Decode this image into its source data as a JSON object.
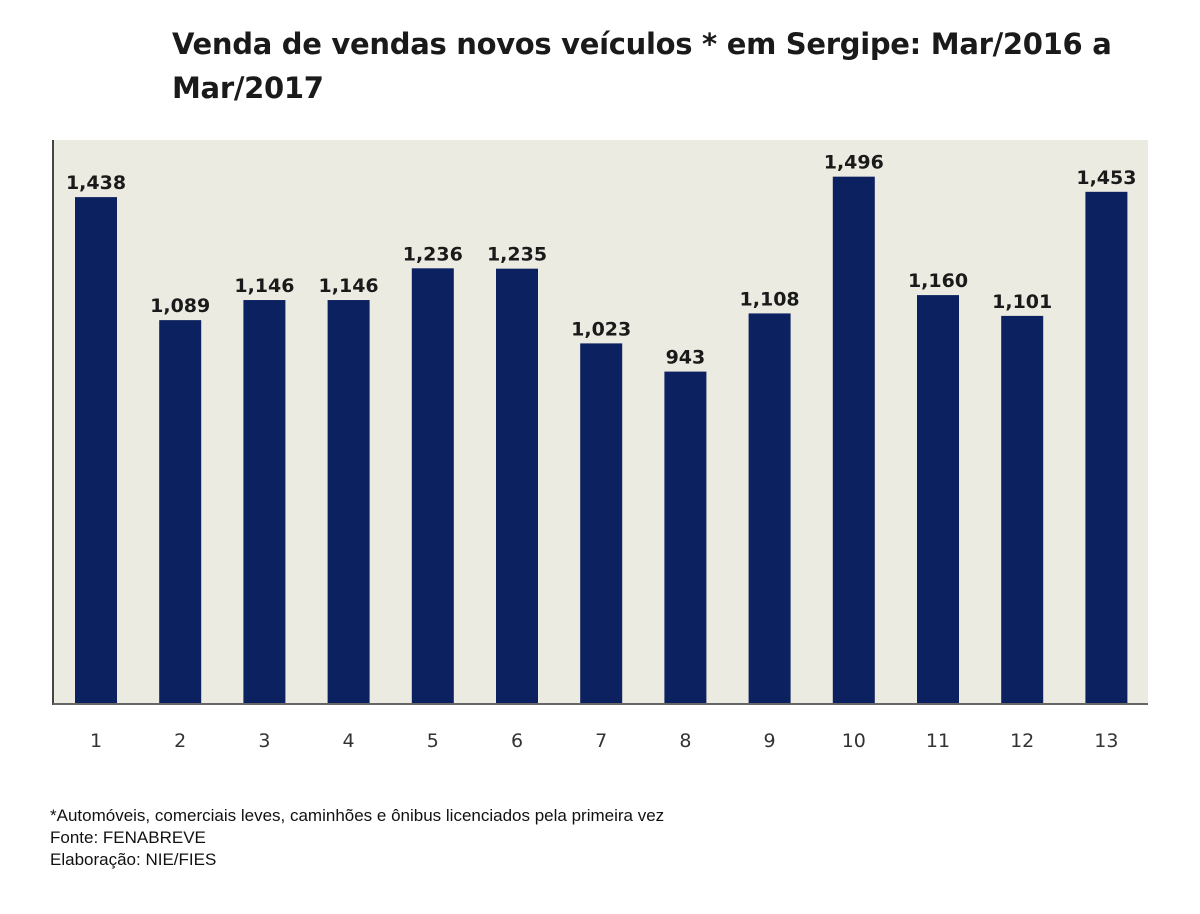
{
  "chart_data": {
    "type": "bar",
    "title": "Venda de vendas novos veículos * em Sergipe: Mar/2016 a Mar/2017",
    "categories": [
      "1",
      "2",
      "3",
      "4",
      "5",
      "6",
      "7",
      "8",
      "9",
      "10",
      "11",
      "12",
      "13"
    ],
    "values": [
      1438,
      1089,
      1146,
      1146,
      1236,
      1235,
      1023,
      943,
      1108,
      1496,
      1160,
      1101,
      1453
    ],
    "data_labels": [
      "1,438",
      "1,089",
      "1,146",
      "1,146",
      "1,236",
      "1,235",
      "1,023",
      "943",
      "1,108",
      "1,496",
      "1,160",
      "1,101",
      "1,453"
    ],
    "xlabel": "",
    "ylabel": "",
    "ylim": [
      0,
      1600
    ],
    "grid": false,
    "colors": {
      "bar": "#0c2160",
      "plot_background": "#ecebe2",
      "axis": "#555555"
    }
  },
  "footnotes": {
    "note": "*Automóveis, comerciais leves, caminhões e ônibus licenciados pela primeira vez",
    "source": "Fonte: FENABREVE",
    "elaboration": "Elaboração: NIE/FIES"
  }
}
